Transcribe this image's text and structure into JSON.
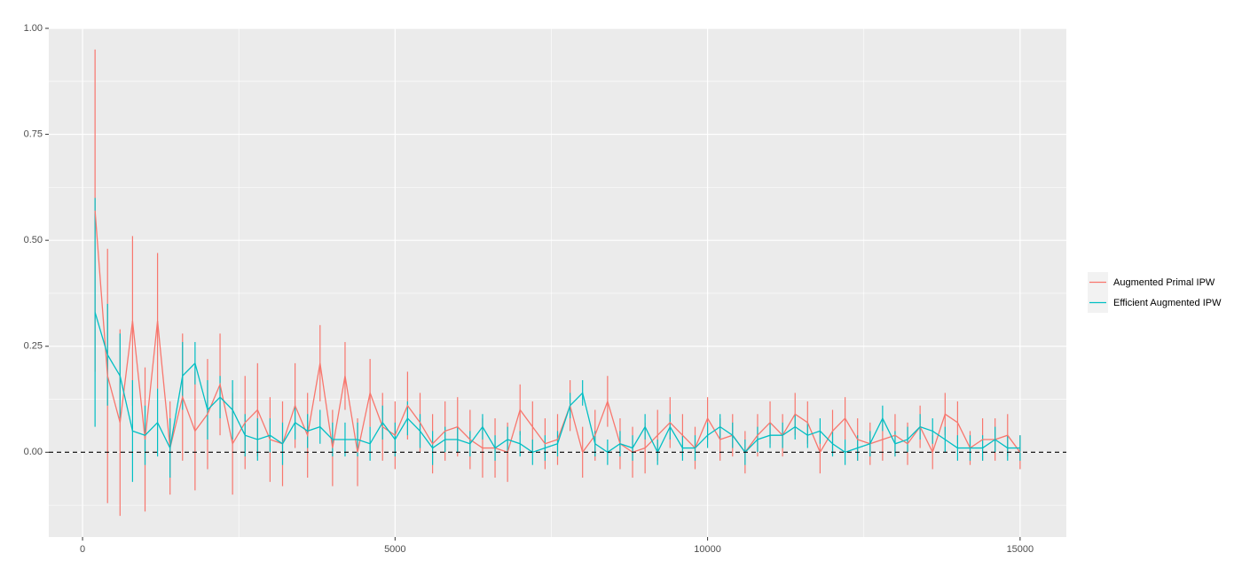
{
  "chart_data": {
    "type": "line",
    "x": [
      200,
      400,
      600,
      800,
      1000,
      1200,
      1400,
      1600,
      1800,
      2000,
      2200,
      2400,
      2600,
      2800,
      3000,
      3200,
      3400,
      3600,
      3800,
      4000,
      4200,
      4400,
      4600,
      4800,
      5000,
      5200,
      5400,
      5600,
      5800,
      6000,
      6200,
      6400,
      6600,
      6800,
      7000,
      7200,
      7400,
      7600,
      7800,
      8000,
      8200,
      8400,
      8600,
      8800,
      9000,
      9200,
      9400,
      9600,
      9800,
      10000,
      10200,
      10400,
      10600,
      10800,
      11000,
      11200,
      11400,
      11600,
      11800,
      12000,
      12200,
      12400,
      12600,
      12800,
      13000,
      13200,
      13400,
      13600,
      13800,
      14000,
      14200,
      14400,
      14600,
      14800,
      15000
    ],
    "series": [
      {
        "name": "Augmented Primal IPW",
        "color": "#F8766D",
        "values": [
          0.57,
          0.18,
          0.07,
          0.31,
          0.03,
          0.31,
          0.01,
          0.13,
          0.05,
          0.09,
          0.16,
          0.02,
          0.07,
          0.1,
          0.03,
          0.02,
          0.11,
          0.04,
          0.21,
          0.01,
          0.18,
          0.0,
          0.14,
          0.06,
          0.04,
          0.11,
          0.07,
          0.02,
          0.05,
          0.06,
          0.03,
          0.01,
          0.01,
          0.0,
          0.1,
          0.06,
          0.02,
          0.03,
          0.11,
          0.0,
          0.04,
          0.12,
          0.02,
          0.0,
          0.01,
          0.04,
          0.07,
          0.04,
          0.01,
          0.08,
          0.03,
          0.04,
          0.0,
          0.04,
          0.07,
          0.04,
          0.09,
          0.07,
          0.0,
          0.05,
          0.08,
          0.03,
          0.02,
          0.03,
          0.04,
          0.02,
          0.06,
          0.0,
          0.09,
          0.07,
          0.01,
          0.03,
          0.03,
          0.04,
          0.0
        ],
        "errors": [
          0.38,
          0.3,
          0.22,
          0.2,
          0.17,
          0.16,
          0.11,
          0.15,
          0.14,
          0.13,
          0.12,
          0.12,
          0.11,
          0.11,
          0.1,
          0.1,
          0.1,
          0.1,
          0.09,
          0.09,
          0.08,
          0.08,
          0.08,
          0.08,
          0.08,
          0.08,
          0.07,
          0.07,
          0.07,
          0.07,
          0.07,
          0.07,
          0.07,
          0.07,
          0.06,
          0.06,
          0.06,
          0.06,
          0.06,
          0.06,
          0.06,
          0.06,
          0.06,
          0.06,
          0.06,
          0.06,
          0.06,
          0.05,
          0.05,
          0.05,
          0.05,
          0.05,
          0.05,
          0.05,
          0.05,
          0.05,
          0.05,
          0.05,
          0.05,
          0.05,
          0.05,
          0.05,
          0.05,
          0.05,
          0.05,
          0.05,
          0.05,
          0.04,
          0.05,
          0.05,
          0.04,
          0.05,
          0.05,
          0.05,
          0.04
        ]
      },
      {
        "name": "Efficient Augmented IPW",
        "color": "#00BFC4",
        "values": [
          0.33,
          0.23,
          0.18,
          0.05,
          0.04,
          0.07,
          0.01,
          0.18,
          0.21,
          0.1,
          0.13,
          0.1,
          0.04,
          0.03,
          0.04,
          0.02,
          0.07,
          0.05,
          0.06,
          0.03,
          0.03,
          0.03,
          0.02,
          0.07,
          0.03,
          0.08,
          0.05,
          0.01,
          0.03,
          0.03,
          0.02,
          0.06,
          0.01,
          0.03,
          0.02,
          0.0,
          0.01,
          0.02,
          0.11,
          0.14,
          0.02,
          0.0,
          0.02,
          0.01,
          0.06,
          0.0,
          0.06,
          0.01,
          0.01,
          0.04,
          0.06,
          0.04,
          0.0,
          0.03,
          0.04,
          0.04,
          0.06,
          0.04,
          0.05,
          0.02,
          0.0,
          0.01,
          0.02,
          0.08,
          0.02,
          0.03,
          0.06,
          0.05,
          0.03,
          0.01,
          0.01,
          0.01,
          0.03,
          0.01,
          0.01
        ],
        "errors": [
          0.27,
          0.12,
          0.1,
          0.12,
          0.07,
          0.08,
          0.07,
          0.08,
          0.05,
          0.07,
          0.05,
          0.07,
          0.05,
          0.05,
          0.04,
          0.05,
          0.04,
          0.04,
          0.04,
          0.04,
          0.04,
          0.04,
          0.04,
          0.04,
          0.04,
          0.04,
          0.04,
          0.04,
          0.03,
          0.03,
          0.03,
          0.03,
          0.03,
          0.03,
          0.03,
          0.03,
          0.03,
          0.03,
          0.03,
          0.03,
          0.03,
          0.03,
          0.03,
          0.03,
          0.03,
          0.03,
          0.03,
          0.03,
          0.03,
          0.03,
          0.03,
          0.03,
          0.03,
          0.03,
          0.03,
          0.03,
          0.03,
          0.03,
          0.03,
          0.03,
          0.03,
          0.03,
          0.03,
          0.03,
          0.03,
          0.03,
          0.03,
          0.03,
          0.03,
          0.03,
          0.03,
          0.03,
          0.03,
          0.03,
          0.03
        ]
      }
    ],
    "hline": 0,
    "xlim": [
      -540,
      15740
    ],
    "ylim": [
      -0.2,
      1.0
    ],
    "xticks": [
      0,
      5000,
      10000,
      15000
    ],
    "yticks": [
      {
        "value": 0,
        "label": "0.00"
      },
      {
        "value": 0.25,
        "label": "0.25"
      },
      {
        "value": 0.5,
        "label": "0.50"
      },
      {
        "value": 0.75,
        "label": "0.75"
      },
      {
        "value": 1.0,
        "label": "1.00"
      }
    ],
    "grid": true,
    "legend": "right"
  }
}
